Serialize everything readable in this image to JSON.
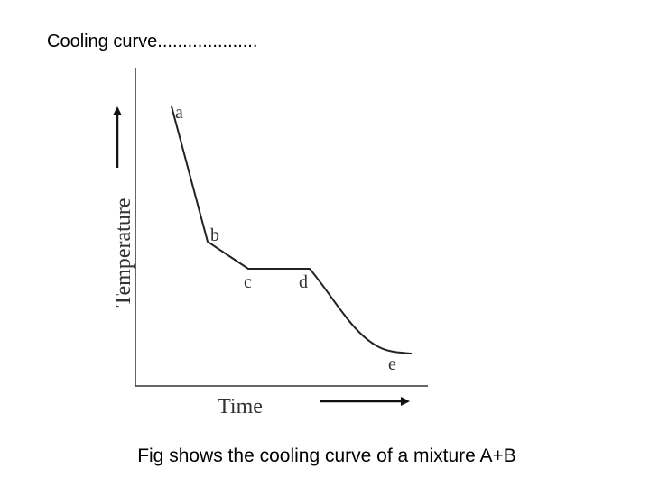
{
  "header": {
    "title": "Cooling curve...................."
  },
  "diagram": {
    "y_axis_label": "Temperature",
    "x_axis_label": "Time",
    "points": [
      {
        "label": "a"
      },
      {
        "label": "b"
      },
      {
        "label": "c"
      },
      {
        "label": "d"
      },
      {
        "label": "e"
      }
    ]
  },
  "caption": "Fig shows the cooling curve of a mixture A+B"
}
